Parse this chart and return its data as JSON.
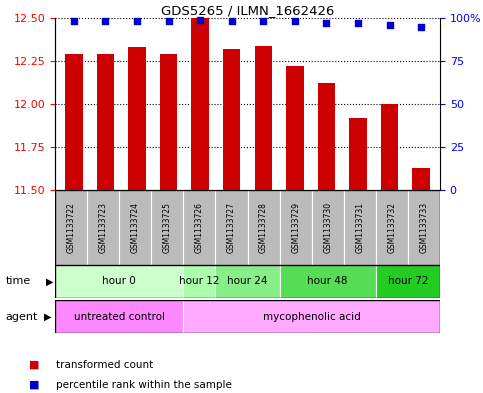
{
  "title": "GDS5265 / ILMN_1662426",
  "samples": [
    "GSM1133722",
    "GSM1133723",
    "GSM1133724",
    "GSM1133725",
    "GSM1133726",
    "GSM1133727",
    "GSM1133728",
    "GSM1133729",
    "GSM1133730",
    "GSM1133731",
    "GSM1133732",
    "GSM1133733"
  ],
  "bar_values": [
    12.29,
    12.29,
    12.33,
    12.29,
    12.5,
    12.32,
    12.34,
    12.22,
    12.12,
    11.92,
    12.0,
    11.63
  ],
  "percentile_values": [
    98,
    98,
    98,
    98,
    99,
    98,
    98,
    98,
    97,
    97,
    96,
    95
  ],
  "bar_color": "#cc0000",
  "dot_color": "#0000cc",
  "ylim_left": [
    11.5,
    12.5
  ],
  "ylim_right": [
    0,
    100
  ],
  "yticks_left": [
    11.5,
    11.75,
    12.0,
    12.25,
    12.5
  ],
  "yticks_right": [
    0,
    25,
    50,
    75,
    100
  ],
  "ytick_labels_right": [
    "0",
    "25",
    "50",
    "75",
    "100%"
  ],
  "time_groups": [
    {
      "label": "hour 0",
      "start": 0,
      "end": 3,
      "color": "#ccffcc"
    },
    {
      "label": "hour 12",
      "start": 4,
      "end": 4,
      "color": "#aaffaa"
    },
    {
      "label": "hour 24",
      "start": 5,
      "end": 6,
      "color": "#88ee88"
    },
    {
      "label": "hour 48",
      "start": 7,
      "end": 9,
      "color": "#55dd55"
    },
    {
      "label": "hour 72",
      "start": 10,
      "end": 11,
      "color": "#22cc22"
    }
  ],
  "agent_groups": [
    {
      "label": "untreated control",
      "start": 0,
      "end": 3,
      "color": "#ff88ff"
    },
    {
      "label": "mycophenolic acid",
      "start": 4,
      "end": 11,
      "color": "#ffaaff"
    }
  ],
  "legend_bar_color": "#cc0000",
  "legend_dot_color": "#0000cc",
  "legend_bar_label": "transformed count",
  "legend_dot_label": "percentile rank within the sample",
  "background_color": "#ffffff",
  "sample_box_color": "#bbbbbb"
}
